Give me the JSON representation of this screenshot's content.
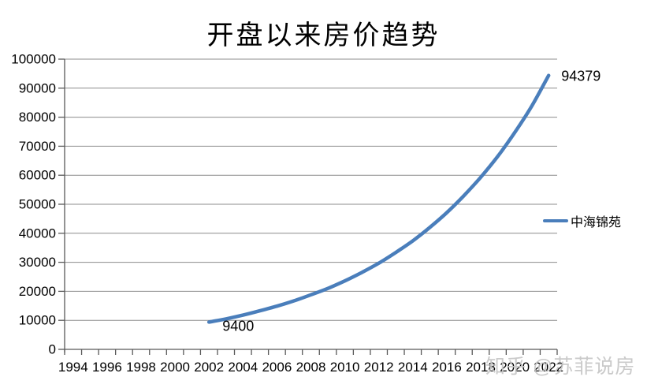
{
  "title": "开盘以来房价趋势",
  "watermark": "知乎 @苏菲说房",
  "legend": {
    "label": "中海锦苑"
  },
  "colors": {
    "line": "#4A7EBB",
    "gridline": "#8C8C8C",
    "axis": "#595959",
    "label_text": "#000000",
    "watermark": "#C5C5C5"
  },
  "chart_data": {
    "type": "line",
    "title": "开盘以来房价趋势",
    "smooth": true,
    "grid": true,
    "legend_position": "right",
    "x_axis": {
      "start_year": 1994,
      "end_year": 2022,
      "label_interval": 2,
      "tick_labels": [
        "1994",
        "1996",
        "1998",
        "2000",
        "2002",
        "2004",
        "2006",
        "2008",
        "2010",
        "2012",
        "2014",
        "2016",
        "2018",
        "2020",
        "2022"
      ]
    },
    "y_axis": {
      "min": 0,
      "max": 100000,
      "tick_interval": 10000,
      "tick_labels": [
        "0",
        "10000",
        "20000",
        "30000",
        "40000",
        "50000",
        "60000",
        "70000",
        "80000",
        "90000",
        "100000"
      ]
    },
    "series": [
      {
        "name": "中海锦苑",
        "color": "#4A7EBB",
        "points": [
          {
            "year": 2002,
            "value": 9400
          },
          {
            "year": 2003,
            "value": 10500
          },
          {
            "year": 2004,
            "value": 11800
          },
          {
            "year": 2005,
            "value": 13300
          },
          {
            "year": 2006,
            "value": 14900
          },
          {
            "year": 2007,
            "value": 16700
          },
          {
            "year": 2008,
            "value": 18800
          },
          {
            "year": 2009,
            "value": 21000
          },
          {
            "year": 2010,
            "value": 23600
          },
          {
            "year": 2011,
            "value": 26500
          },
          {
            "year": 2012,
            "value": 29700
          },
          {
            "year": 2013,
            "value": 33400
          },
          {
            "year": 2014,
            "value": 37400
          },
          {
            "year": 2015,
            "value": 42000
          },
          {
            "year": 2016,
            "value": 47100
          },
          {
            "year": 2017,
            "value": 52900
          },
          {
            "year": 2018,
            "value": 59300
          },
          {
            "year": 2019,
            "value": 66500
          },
          {
            "year": 2020,
            "value": 74700
          },
          {
            "year": 2021,
            "value": 83800
          },
          {
            "year": 2022,
            "value": 94379
          }
        ]
      }
    ],
    "data_labels": [
      {
        "year": 2002,
        "value": 9400,
        "text": "9400"
      },
      {
        "year": 2022,
        "value": 94379,
        "text": "94379"
      }
    ]
  }
}
